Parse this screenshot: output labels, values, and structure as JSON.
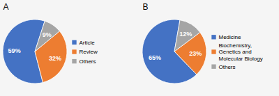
{
  "chart_data": [
    {
      "type": "pie",
      "title": "A",
      "categories": [
        "Article",
        "Review",
        "Others"
      ],
      "values": [
        59,
        32,
        9
      ],
      "value_labels": [
        "59%",
        "32%",
        "9%"
      ],
      "colors": [
        "#4472C4",
        "#ED7D31",
        "#A5A5A5"
      ],
      "data_labels": true,
      "legend": "right"
    },
    {
      "type": "pie",
      "title": "B",
      "categories": [
        "Medicine",
        "Biochemistry,\nGenetics and\nMolecular Biology",
        "Others"
      ],
      "values": [
        65,
        23,
        12
      ],
      "value_labels": [
        "65%",
        "23%",
        "12%"
      ],
      "colors": [
        "#4472C4",
        "#ED7D31",
        "#A5A5A5"
      ],
      "data_labels": true,
      "legend": "right"
    }
  ]
}
